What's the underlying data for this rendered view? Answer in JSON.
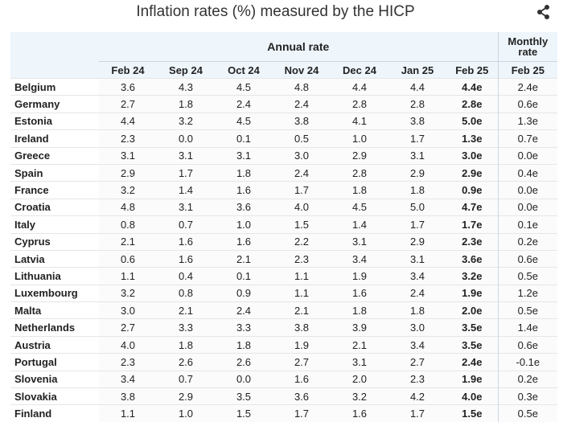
{
  "title": "Inflation rates (%) measured by the HICP",
  "share_icon": "share-icon",
  "header": {
    "annual_label": "Annual rate",
    "monthly_label_1": "Monthly",
    "monthly_label_2": "rate"
  },
  "chart_data": {
    "type": "table",
    "title": "Inflation rates (%) measured by the HICP",
    "columns": [
      "Feb 24",
      "Sep 24",
      "Oct 24",
      "Nov 24",
      "Dec 24",
      "Jan 25",
      "Feb 25",
      "Feb 25"
    ],
    "rows": [
      {
        "country": "Belgium",
        "values": [
          "3.6",
          "4.3",
          "4.5",
          "4.8",
          "4.4",
          "4.4",
          "4.4e",
          "2.4e"
        ]
      },
      {
        "country": "Germany",
        "values": [
          "2.7",
          "1.8",
          "2.4",
          "2.4",
          "2.8",
          "2.8",
          "2.8e",
          "0.6e"
        ]
      },
      {
        "country": "Estonia",
        "values": [
          "4.4",
          "3.2",
          "4.5",
          "3.8",
          "4.1",
          "3.8",
          "5.0e",
          "1.3e"
        ]
      },
      {
        "country": "Ireland",
        "values": [
          "2.3",
          "0.0",
          "0.1",
          "0.5",
          "1.0",
          "1.7",
          "1.3e",
          "0.7e"
        ]
      },
      {
        "country": "Greece",
        "values": [
          "3.1",
          "3.1",
          "3.1",
          "3.0",
          "2.9",
          "3.1",
          "3.0e",
          "0.0e"
        ]
      },
      {
        "country": "Spain",
        "values": [
          "2.9",
          "1.7",
          "1.8",
          "2.4",
          "2.8",
          "2.9",
          "2.9e",
          "0.4e"
        ]
      },
      {
        "country": "France",
        "values": [
          "3.2",
          "1.4",
          "1.6",
          "1.7",
          "1.8",
          "1.8",
          "0.9e",
          "0.0e"
        ]
      },
      {
        "country": "Croatia",
        "values": [
          "4.8",
          "3.1",
          "3.6",
          "4.0",
          "4.5",
          "5.0",
          "4.7e",
          "0.0e"
        ]
      },
      {
        "country": "Italy",
        "values": [
          "0.8",
          "0.7",
          "1.0",
          "1.5",
          "1.4",
          "1.7",
          "1.7e",
          "0.1e"
        ]
      },
      {
        "country": "Cyprus",
        "values": [
          "2.1",
          "1.6",
          "1.6",
          "2.2",
          "3.1",
          "2.9",
          "2.3e",
          "0.2e"
        ]
      },
      {
        "country": "Latvia",
        "values": [
          "0.6",
          "1.6",
          "2.1",
          "2.3",
          "3.4",
          "3.1",
          "3.6e",
          "0.6e"
        ]
      },
      {
        "country": "Lithuania",
        "values": [
          "1.1",
          "0.4",
          "0.1",
          "1.1",
          "1.9",
          "3.4",
          "3.2e",
          "0.5e"
        ]
      },
      {
        "country": "Luxembourg",
        "values": [
          "3.2",
          "0.8",
          "0.9",
          "1.1",
          "1.6",
          "2.4",
          "1.9e",
          "1.2e"
        ]
      },
      {
        "country": "Malta",
        "values": [
          "3.0",
          "2.1",
          "2.4",
          "2.1",
          "1.8",
          "1.8",
          "2.0e",
          "0.5e"
        ]
      },
      {
        "country": "Netherlands",
        "values": [
          "2.7",
          "3.3",
          "3.3",
          "3.8",
          "3.9",
          "3.0",
          "3.5e",
          "1.4e"
        ]
      },
      {
        "country": "Austria",
        "values": [
          "4.0",
          "1.8",
          "1.8",
          "1.9",
          "2.1",
          "3.4",
          "3.5e",
          "0.6e"
        ]
      },
      {
        "country": "Portugal",
        "values": [
          "2.3",
          "2.6",
          "2.6",
          "2.7",
          "3.1",
          "2.7",
          "2.4e",
          "-0.1e"
        ]
      },
      {
        "country": "Slovenia",
        "values": [
          "3.4",
          "0.7",
          "0.0",
          "1.6",
          "2.0",
          "2.3",
          "1.9e",
          "0.2e"
        ]
      },
      {
        "country": "Slovakia",
        "values": [
          "3.8",
          "2.9",
          "3.5",
          "3.6",
          "3.2",
          "4.2",
          "4.0e",
          "0.3e"
        ]
      },
      {
        "country": "Finland",
        "values": [
          "1.1",
          "1.0",
          "1.5",
          "1.7",
          "1.6",
          "1.7",
          "1.5e",
          "0.5e"
        ]
      }
    ]
  }
}
